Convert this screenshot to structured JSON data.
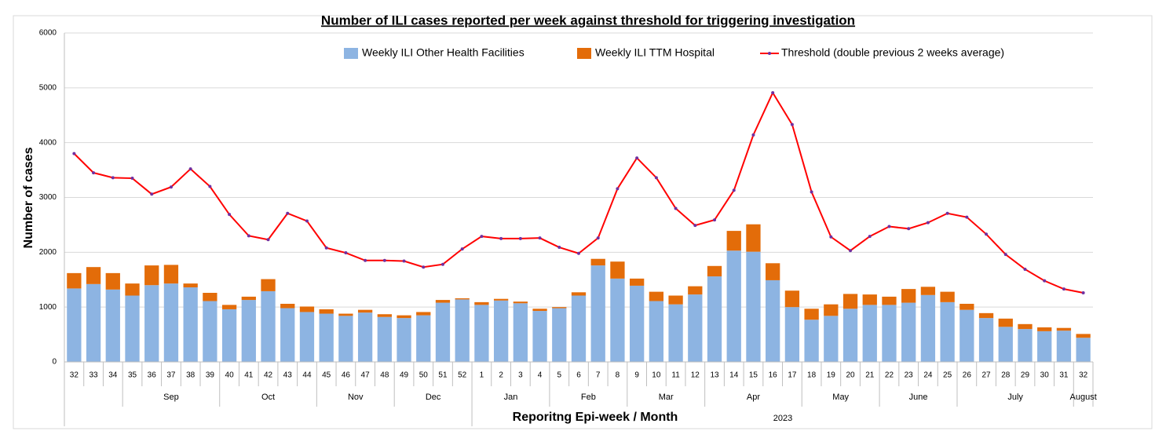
{
  "chart_data": {
    "type": "bar+line",
    "title": "Number of ILI cases  reported per week against threshold for triggering investigation",
    "y_label": "Number of cases",
    "x_label": "Reporitng Epi-week / Month",
    "year_label": "2023",
    "categories": [
      "32",
      "33",
      "34",
      "35",
      "36",
      "37",
      "38",
      "39",
      "40",
      "41",
      "42",
      "43",
      "44",
      "45",
      "46",
      "47",
      "48",
      "49",
      "50",
      "51",
      "52",
      "1",
      "2",
      "3",
      "4",
      "5",
      "6",
      "7",
      "8",
      "9",
      "10",
      "11",
      "12",
      "13",
      "14",
      "15",
      "16",
      "17",
      "18",
      "19",
      "20",
      "21",
      "22",
      "23",
      "24",
      "25",
      "26",
      "27",
      "28",
      "29",
      "30",
      "31",
      "32"
    ],
    "months": [
      null,
      null,
      null,
      "Sep",
      "Sep",
      "Sep",
      "Sep",
      "Sep",
      "Oct",
      "Oct",
      "Oct",
      "Oct",
      "Oct",
      "Nov",
      "Nov",
      "Nov",
      "Nov",
      "Dec",
      "Dec",
      "Dec",
      "Dec",
      "Jan",
      "Jan",
      "Jan",
      "Jan",
      "Feb",
      "Feb",
      "Feb",
      "Feb",
      "Mar",
      "Mar",
      "Mar",
      "Mar",
      "Apr",
      "Apr",
      "Apr",
      "Apr",
      "Apr",
      "May",
      "May",
      "May",
      "May",
      "June",
      "June",
      "June",
      "June",
      "July",
      "July",
      "July",
      "July",
      "July",
      "July",
      "August"
    ],
    "series": [
      {
        "name": "Weekly ILI Other Health Facilities",
        "color": "#8db4e2",
        "type": "bar",
        "values": [
          1340,
          1420,
          1320,
          1210,
          1400,
          1430,
          1360,
          1110,
          960,
          1130,
          1290,
          980,
          910,
          880,
          840,
          900,
          820,
          800,
          850,
          1080,
          1140,
          1040,
          1120,
          1070,
          930,
          980,
          1210,
          1760,
          1520,
          1390,
          1110,
          1050,
          1230,
          1560,
          2030,
          2010,
          1490,
          1000,
          770,
          840,
          970,
          1040,
          1040,
          1080,
          1220,
          1090,
          950,
          800,
          640,
          600,
          560,
          570,
          440
        ]
      },
      {
        "name": "Weekly ILI TTM Hospital",
        "color": "#e36c09",
        "type": "bar",
        "values": [
          280,
          310,
          300,
          220,
          360,
          340,
          70,
          150,
          80,
          60,
          220,
          80,
          100,
          80,
          40,
          50,
          50,
          50,
          60,
          50,
          20,
          50,
          30,
          30,
          40,
          20,
          60,
          120,
          310,
          130,
          170,
          160,
          150,
          190,
          360,
          500,
          310,
          300,
          200,
          210,
          270,
          190,
          150,
          250,
          150,
          190,
          110,
          90,
          150,
          90,
          70,
          50,
          70
        ]
      },
      {
        "name": "Threshold (double previous 2 weeks average)",
        "color": "#ff0000",
        "type": "line",
        "values": [
          3800,
          3450,
          3360,
          3350,
          3060,
          3190,
          3520,
          3200,
          2690,
          2300,
          2230,
          2710,
          2570,
          2080,
          1990,
          1850,
          1850,
          1840,
          1730,
          1780,
          2060,
          2290,
          2250,
          2250,
          2260,
          2090,
          1980,
          2260,
          3160,
          3720,
          3360,
          2800,
          2490,
          2590,
          3130,
          4140,
          4910,
          4330,
          3100,
          2280,
          2030,
          2290,
          2470,
          2430,
          2540,
          2710,
          2640,
          2330,
          1960,
          1690,
          1480,
          1330,
          1260
        ]
      }
    ],
    "stacked": true,
    "ylim": [
      0,
      6000
    ],
    "yticks": [
      0,
      1000,
      2000,
      3000,
      4000,
      5000,
      6000
    ],
    "grid": true,
    "legend": "top"
  }
}
